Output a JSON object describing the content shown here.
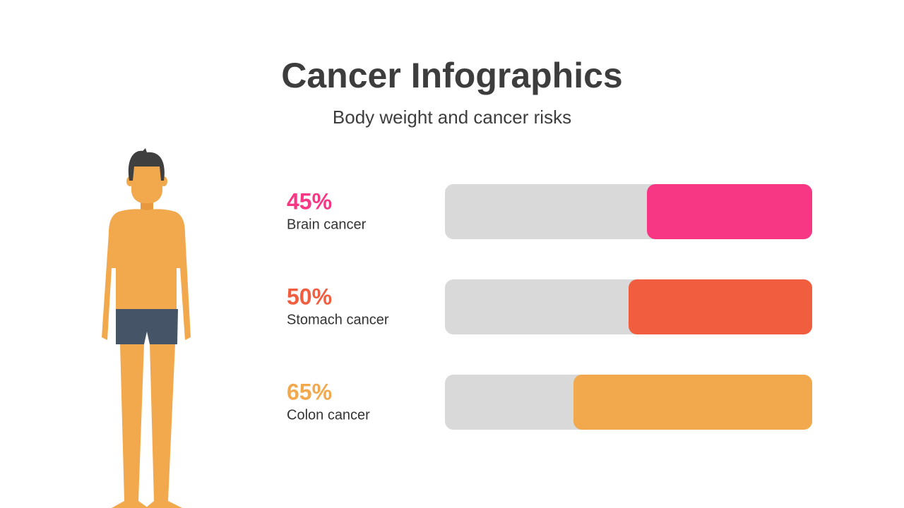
{
  "chart_data": {
    "type": "bar",
    "orientation": "horizontal",
    "title": "Cancer Infographics",
    "subtitle": "Body weight and cancer risks",
    "categories": [
      "Brain cancer",
      "Stomach cancer",
      "Colon cancer"
    ],
    "values": [
      45,
      50,
      65
    ],
    "value_labels": [
      "45%",
      "50%",
      "65%"
    ],
    "colors": [
      "#f83784",
      "#f15e3f",
      "#f2a94e"
    ],
    "xlim": [
      0,
      100
    ]
  }
}
